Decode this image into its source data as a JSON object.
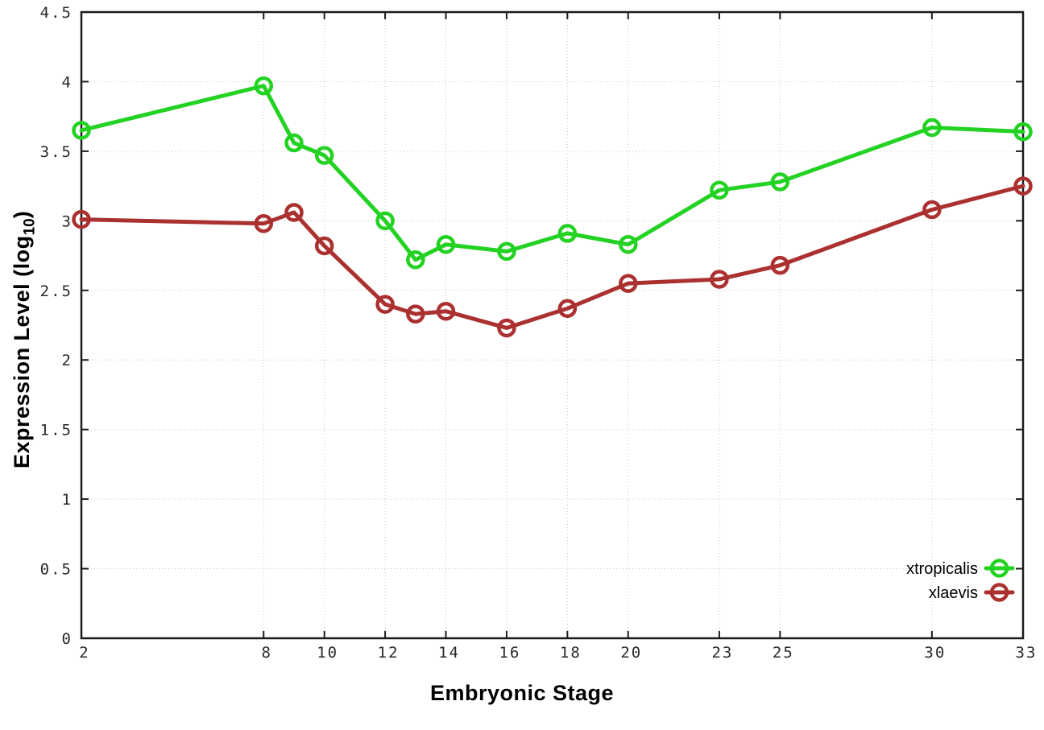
{
  "figure": {
    "background": "#ffffff",
    "ylabel_prefix": "Expression Level (log",
    "ylabel_sub": "10",
    "ylabel_suffix": ")",
    "colors": {
      "axis": "#1c1c1c",
      "grid": "#c6c6c6",
      "tick_label": "#2a2a2a",
      "legend_text": "#000000"
    }
  },
  "chart_data": {
    "type": "line",
    "title": "",
    "xlabel": "Embryonic Stage",
    "ylabel": "Expression Level (log10)",
    "x": [
      2,
      8,
      9,
      10,
      12,
      13,
      14,
      16,
      18,
      20,
      23,
      25,
      30,
      33
    ],
    "series": [
      {
        "name": "xtropicalis",
        "color": "#23d223",
        "marker": "open-circle",
        "values": [
          3.65,
          3.97,
          3.56,
          3.47,
          3.0,
          2.72,
          2.83,
          2.78,
          2.91,
          2.83,
          3.22,
          3.28,
          3.67,
          3.64
        ]
      },
      {
        "name": "xlaevis",
        "color": "#ab3030",
        "marker": "open-circle",
        "values": [
          3.01,
          2.98,
          3.06,
          2.82,
          2.4,
          2.33,
          2.35,
          2.23,
          2.37,
          2.55,
          2.58,
          2.68,
          3.08,
          3.25
        ]
      }
    ],
    "xlim": [
      2,
      33
    ],
    "ylim": [
      0,
      4.5
    ],
    "xticks": [
      2,
      8,
      10,
      12,
      14,
      16,
      18,
      20,
      23,
      25,
      30,
      33
    ],
    "yticks": [
      0,
      0.5,
      1,
      1.5,
      2,
      2.5,
      3,
      3.5,
      4,
      4.5
    ],
    "grid": true,
    "grid_style": "dotted",
    "legend_position": "inside-bottom-right"
  }
}
